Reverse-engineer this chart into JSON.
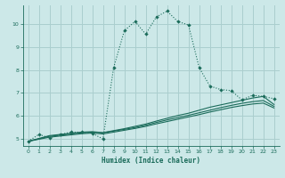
{
  "xlabel": "Humidex (Indice chaleur)",
  "bg_color": "#cce8e8",
  "grid_color": "#aacece",
  "line_color": "#1a6b5a",
  "xlim": [
    -0.5,
    23.5
  ],
  "ylim": [
    4.7,
    10.8
  ],
  "xticks": [
    0,
    1,
    2,
    3,
    4,
    5,
    6,
    7,
    8,
    9,
    10,
    11,
    12,
    13,
    14,
    15,
    16,
    17,
    18,
    19,
    20,
    21,
    22,
    23
  ],
  "yticks": [
    5,
    6,
    7,
    8,
    9,
    10
  ],
  "line1_x": [
    0,
    1,
    2,
    3,
    4,
    5,
    6,
    7,
    8,
    9,
    10,
    11,
    12,
    13,
    14,
    15,
    16,
    17,
    18,
    19,
    20,
    21,
    22,
    23
  ],
  "line1_y": [
    4.9,
    5.2,
    5.05,
    5.2,
    5.3,
    5.3,
    5.25,
    5.0,
    8.1,
    9.7,
    10.1,
    9.55,
    10.3,
    10.55,
    10.1,
    9.95,
    8.1,
    7.3,
    7.15,
    7.1,
    6.7,
    6.9,
    6.85,
    6.75
  ],
  "line2_x": [
    0,
    2,
    3,
    4,
    5,
    6,
    7,
    9,
    10,
    11,
    12,
    13,
    14,
    15,
    16,
    17,
    18,
    19,
    20,
    21,
    22,
    23
  ],
  "line2_y": [
    4.9,
    5.15,
    5.2,
    5.25,
    5.3,
    5.32,
    5.28,
    5.45,
    5.55,
    5.65,
    5.78,
    5.9,
    6.02,
    6.12,
    6.25,
    6.38,
    6.48,
    6.58,
    6.68,
    6.78,
    6.85,
    6.5
  ],
  "line3_x": [
    0,
    2,
    3,
    4,
    5,
    6,
    7,
    9,
    10,
    11,
    12,
    13,
    14,
    15,
    16,
    17,
    18,
    19,
    20,
    21,
    22,
    23
  ],
  "line3_y": [
    4.9,
    5.12,
    5.17,
    5.22,
    5.27,
    5.3,
    5.27,
    5.42,
    5.5,
    5.6,
    5.72,
    5.83,
    5.93,
    6.03,
    6.14,
    6.25,
    6.36,
    6.46,
    6.55,
    6.62,
    6.67,
    6.42
  ],
  "line4_x": [
    0,
    2,
    3,
    4,
    5,
    6,
    7,
    9,
    10,
    11,
    12,
    13,
    14,
    15,
    16,
    17,
    18,
    19,
    20,
    21,
    22,
    23
  ],
  "line4_y": [
    4.9,
    5.08,
    5.13,
    5.18,
    5.23,
    5.26,
    5.22,
    5.38,
    5.46,
    5.55,
    5.66,
    5.76,
    5.86,
    5.96,
    6.06,
    6.17,
    6.27,
    6.37,
    6.45,
    6.52,
    6.56,
    6.35
  ]
}
